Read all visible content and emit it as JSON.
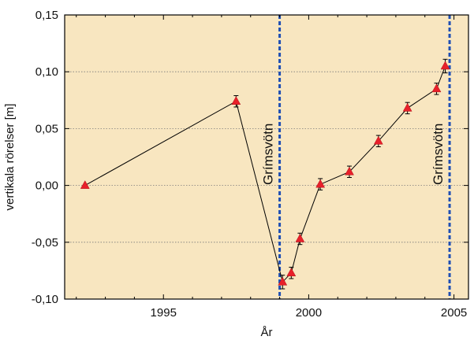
{
  "chart_data": {
    "type": "line",
    "xlabel": "År",
    "ylabel": "vertikala rörelser [m]",
    "xlim": [
      1991.6,
      2005.5
    ],
    "ylim": [
      -0.1,
      0.15
    ],
    "x_ticks": [
      1995,
      2000,
      2005
    ],
    "x_tick_labels": [
      "1995",
      "2000",
      "2005"
    ],
    "y_ticks": [
      -0.1,
      -0.05,
      0.0,
      0.05,
      0.1,
      0.15
    ],
    "y_tick_labels": [
      "-0,10",
      "-0,05",
      "0,00",
      "0,05",
      "0,10",
      "0,15"
    ],
    "grid": "horizontal dotted",
    "colors": {
      "background": "#f8e6c0",
      "line": "#000000",
      "marker": "#e8202a",
      "event_line": "#1f4fb4"
    },
    "series": [
      {
        "x": [
          1992.3,
          1997.5,
          1999.1,
          1999.4,
          1999.7,
          2000.4,
          2001.4,
          2002.4,
          2003.4,
          2004.4,
          2004.7
        ],
        "y": [
          0.0,
          0.074,
          -0.085,
          -0.077,
          -0.047,
          0.001,
          0.012,
          0.039,
          0.068,
          0.085,
          0.105
        ],
        "error": [
          0.0,
          0.005,
          0.006,
          0.005,
          0.005,
          0.005,
          0.005,
          0.005,
          0.005,
          0.005,
          0.006
        ]
      }
    ],
    "events": [
      {
        "x": 1999.0,
        "label": "Grímsvötn"
      },
      {
        "x": 2004.85,
        "label": "Grímsvötn"
      }
    ]
  }
}
